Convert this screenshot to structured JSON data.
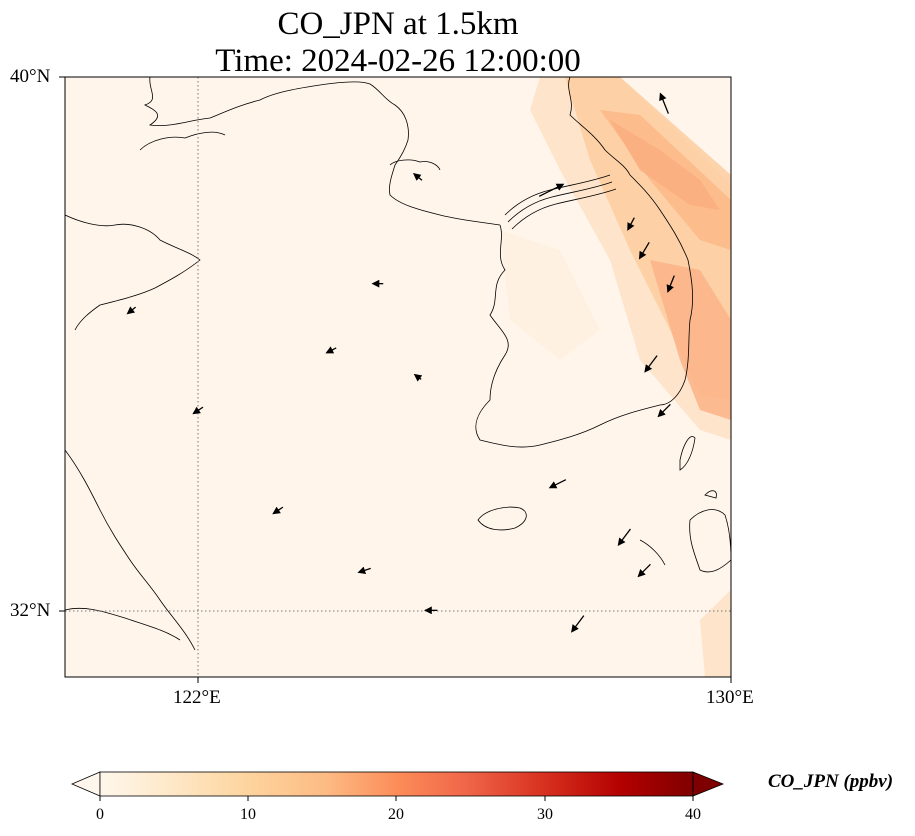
{
  "title": {
    "line1": "CO_JPN at 1.5km",
    "line2": "Time: 2024-02-26 12:00:00"
  },
  "map": {
    "lon_range": [
      120,
      130
    ],
    "lat_range": [
      31,
      40
    ],
    "gridlines": {
      "lon": [
        122
      ],
      "lat": [
        32
      ],
      "style": "dotted"
    },
    "x_ticks": [
      {
        "lon": 122,
        "label": "122°E"
      },
      {
        "lon": 130,
        "label": "130°E"
      }
    ],
    "y_ticks": [
      {
        "lat": 40,
        "label": "40°N"
      },
      {
        "lat": 32,
        "label": "32°N"
      }
    ],
    "background_color": "#fff5eb",
    "coastline_color": "#000000"
  },
  "colorbar": {
    "label": "CO_JPN (ppbv)",
    "colormap": "OrRd",
    "range": [
      0,
      40
    ],
    "extend": "both",
    "ticks": [
      "0",
      "10",
      "20",
      "30",
      "40"
    ],
    "colors": [
      "#fff7ec",
      "#fee8c8",
      "#fdd49e",
      "#fdbb84",
      "#fc8d59",
      "#ef6548",
      "#d7301f",
      "#b30000",
      "#7f0000"
    ]
  },
  "chart_data": {
    "type": "heatmap",
    "variable": "CO_JPN",
    "units": "ppbv",
    "level": "1.5km",
    "time": "2024-02-26 12:00:00",
    "xlim": [
      120,
      130
    ],
    "ylim": [
      31,
      40
    ],
    "concentration_pattern": [
      {
        "region": "background over Yellow Sea and East China",
        "value_ppbv": 1
      },
      {
        "region": "along Korean east coast",
        "lon": 129.6,
        "lat": 37.0,
        "value_ppbv": 12
      },
      {
        "region": "offshore 128.5°E 39.5°N",
        "lon": 128.5,
        "lat": 39.5,
        "value_ppbv": 9
      },
      {
        "region": "east of 129.5°E 35.5°N",
        "lon": 129.5,
        "lat": 35.5,
        "value_ppbv": 10
      },
      {
        "region": "southern Korea",
        "lon": 127.5,
        "lat": 35.5,
        "value_ppbv": 3
      }
    ],
    "wind_vectors": [
      {
        "lon": 129.0,
        "lat": 39.6,
        "u": -1.0,
        "v": 2.5
      },
      {
        "lon": 127.3,
        "lat": 38.3,
        "u": 3.0,
        "v": 1.5
      },
      {
        "lon": 128.5,
        "lat": 37.8,
        "u": -0.8,
        "v": -1.5
      },
      {
        "lon": 128.7,
        "lat": 37.4,
        "u": -1.2,
        "v": -2.0
      },
      {
        "lon": 129.1,
        "lat": 36.9,
        "u": -0.8,
        "v": -2.0
      },
      {
        "lon": 128.8,
        "lat": 35.7,
        "u": -1.5,
        "v": -2.0
      },
      {
        "lon": 129.0,
        "lat": 35.0,
        "u": -1.5,
        "v": -1.5
      },
      {
        "lon": 127.4,
        "lat": 33.9,
        "u": -2.0,
        "v": -1.0
      },
      {
        "lon": 128.4,
        "lat": 33.1,
        "u": -1.5,
        "v": -2.0
      },
      {
        "lon": 128.7,
        "lat": 32.6,
        "u": -1.5,
        "v": -1.5
      },
      {
        "lon": 127.7,
        "lat": 31.8,
        "u": -1.5,
        "v": -2.0
      },
      {
        "lon": 125.5,
        "lat": 32.0,
        "u": -1.5,
        "v": 0.0
      },
      {
        "lon": 124.5,
        "lat": 32.6,
        "u": -1.5,
        "v": -0.5
      },
      {
        "lon": 123.2,
        "lat": 33.5,
        "u": -1.2,
        "v": -0.8
      },
      {
        "lon": 122.0,
        "lat": 35.0,
        "u": -1.2,
        "v": -0.8
      },
      {
        "lon": 121.0,
        "lat": 36.5,
        "u": -1.0,
        "v": -0.8
      },
      {
        "lon": 124.7,
        "lat": 36.9,
        "u": -1.3,
        "v": 0.0
      },
      {
        "lon": 124.0,
        "lat": 35.9,
        "u": -1.2,
        "v": -0.6
      },
      {
        "lon": 125.3,
        "lat": 35.5,
        "u": -0.8,
        "v": 0.6
      },
      {
        "lon": 125.3,
        "lat": 38.5,
        "u": -1.0,
        "v": 0.8
      }
    ]
  }
}
